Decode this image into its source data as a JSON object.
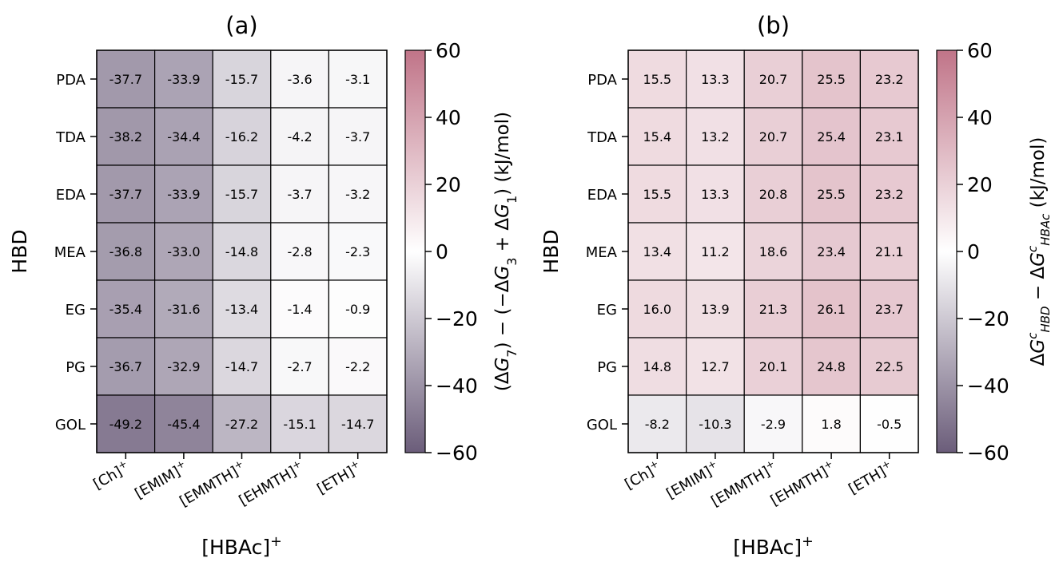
{
  "chart_data": [
    {
      "type": "heatmap",
      "title": "(a)",
      "xlabel": "[HBAc]⁺",
      "ylabel": "HBD",
      "x_categories": [
        "[Ch]⁺",
        "[EMIM]⁺",
        "[EMMTH]⁺",
        "[EHMTH]⁺",
        "[ETH]⁺"
      ],
      "y_categories": [
        "PDA",
        "TDA",
        "EDA",
        "MEA",
        "EG",
        "PG",
        "GOL"
      ],
      "values": [
        [
          -37.7,
          -33.9,
          -15.7,
          -3.6,
          -3.1
        ],
        [
          -38.2,
          -34.4,
          -16.2,
          -4.2,
          -3.7
        ],
        [
          -37.7,
          -33.9,
          -15.7,
          -3.7,
          -3.2
        ],
        [
          -36.8,
          -33.0,
          -14.8,
          -2.8,
          -2.3
        ],
        [
          -35.4,
          -31.6,
          -13.4,
          -1.4,
          -0.9
        ],
        [
          -36.7,
          -32.9,
          -14.7,
          -2.7,
          -2.2
        ],
        [
          -49.2,
          -45.4,
          -27.2,
          -15.1,
          -14.7
        ]
      ],
      "colorbar": {
        "label": "(ΔG₇) − (−ΔG₃ + ΔG₁) (kJ/mol)",
        "range": [
          -60,
          60
        ],
        "ticks": [
          "60",
          "40",
          "20",
          "0",
          "−20",
          "−40",
          "−60"
        ]
      }
    },
    {
      "type": "heatmap",
      "title": "(b)",
      "xlabel": "[HBAc]⁺",
      "ylabel": "HBD",
      "x_categories": [
        "[Ch]⁺",
        "[EMIM]⁺",
        "[EMMTH]⁺",
        "[EHMTH]⁺",
        "[ETH]⁺"
      ],
      "y_categories": [
        "PDA",
        "TDA",
        "EDA",
        "MEA",
        "EG",
        "PG",
        "GOL"
      ],
      "values": [
        [
          15.5,
          13.3,
          20.7,
          25.5,
          23.2
        ],
        [
          15.4,
          13.2,
          20.7,
          25.4,
          23.1
        ],
        [
          15.5,
          13.3,
          20.8,
          25.5,
          23.2
        ],
        [
          13.4,
          11.2,
          18.6,
          23.4,
          21.1
        ],
        [
          16.0,
          13.9,
          21.3,
          26.1,
          23.7
        ],
        [
          14.8,
          12.7,
          20.1,
          24.8,
          22.5
        ],
        [
          -8.2,
          -10.3,
          -2.9,
          1.8,
          -0.5
        ]
      ],
      "colorbar": {
        "label": "ΔGᶜ_HBD − ΔGᶜ_HBAc (kJ/mol)",
        "range": [
          -60,
          60
        ],
        "ticks": [
          "60",
          "40",
          "20",
          "0",
          "−20",
          "−40",
          "−60"
        ]
      }
    }
  ],
  "colors": {
    "low": "#6b5d7a",
    "mid": "#ffffff",
    "high": "#c07488"
  }
}
